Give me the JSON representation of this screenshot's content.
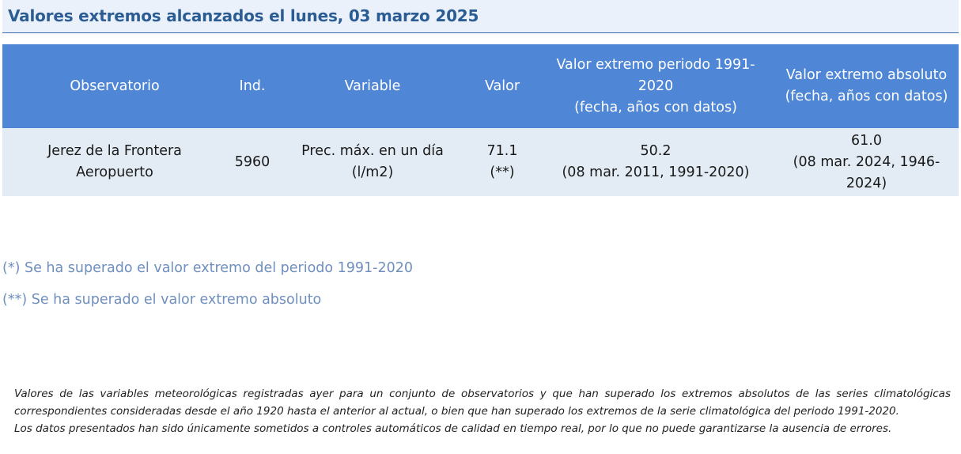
{
  "title": "Valores extremos alcanzados el lunes, 03 marzo 2025",
  "table": {
    "headers": {
      "observatorio": "Observatorio",
      "ind": "Ind.",
      "variable": "Variable",
      "valor": "Valor",
      "periodo": [
        "Valor extremo periodo 1991-",
        "2020",
        "(fecha, años con datos)"
      ],
      "absoluto": [
        "Valor extremo absoluto",
        "(fecha, años con datos)"
      ]
    },
    "rows": [
      {
        "observatorio": [
          "Jerez de la Frontera",
          "Aeropuerto"
        ],
        "ind": "5960",
        "variable": [
          "Prec. máx. en un día",
          "(l/m2)"
        ],
        "valor": [
          "71.1",
          "(**)"
        ],
        "periodo": [
          "50.2",
          "(08 mar. 2011, 1991-2020)"
        ],
        "absoluto": [
          "61.0",
          "(08 mar. 2024, 1946-",
          "2024)"
        ]
      }
    ]
  },
  "notes": {
    "note_1": "(*) Se ha superado el valor extremo del periodo 1991-2020",
    "note_2": "(**) Se ha superado el valor extremo absoluto"
  },
  "footer": {
    "line_1": "Valores de las variables meteorológicas registradas ayer para un conjunto de observatorios y que han superado los extremos absolutos de las series climatológicas",
    "line_2": "correspondientes consideradas desde el año 1920 hasta el anterior al actual, o bien que han superado los extremos de la serie climatológica del periodo 1991-2020.",
    "line_3": "Los datos presentados han sido únicamente sometidos a controles automáticos de calidad en tiempo real, por lo que no puede garantizarse la ausencia de errores."
  }
}
